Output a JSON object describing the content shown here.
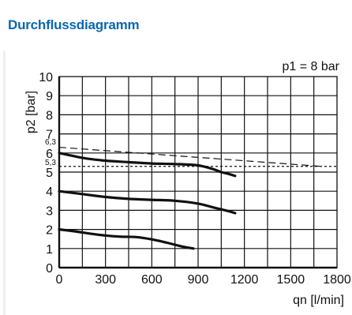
{
  "header": {
    "title": "Durchflussdiagramm"
  },
  "colors": {
    "title": "#0a67b2",
    "grid": "#111111",
    "curve": "#111111"
  },
  "chart_data": {
    "type": "line",
    "title": "",
    "annotation": "p1 = 8 bar",
    "xlabel": "qn [l/min]",
    "ylabel": "p2 [bar]",
    "xlim": [
      0,
      1800
    ],
    "ylim": [
      0,
      10
    ],
    "x_ticks": [
      "0",
      "300",
      "600",
      "900",
      "1200",
      "1500",
      "1800"
    ],
    "x_tick_values": [
      0,
      300,
      600,
      900,
      1200,
      1500,
      1800
    ],
    "y_ticks": [
      "0",
      "1",
      "2",
      "3",
      "4",
      "5",
      "6",
      "7",
      "8",
      "9",
      "10"
    ],
    "y_tick_values": [
      0,
      1,
      2,
      3,
      4,
      5,
      6,
      7,
      8,
      9,
      10
    ],
    "x_grid_step": 150,
    "y_grid_step": 1,
    "grid": true,
    "legend": "none",
    "reference_lines": [
      {
        "label": "6,3",
        "points": [
          {
            "x": 0,
            "y": 6.3
          },
          {
            "x": 1700,
            "y": 5.3
          }
        ],
        "style": "dashed"
      },
      {
        "label": "5,3",
        "points": [
          {
            "x": 0,
            "y": 5.3
          },
          {
            "x": 1800,
            "y": 5.3
          }
        ],
        "style": "dotted"
      }
    ],
    "series": [
      {
        "x": [
          0,
          150,
          300,
          450,
          600,
          750,
          900,
          1000,
          1050,
          1100,
          1140
        ],
        "y": [
          6.0,
          5.75,
          5.6,
          5.52,
          5.45,
          5.42,
          5.35,
          5.15,
          5.0,
          4.9,
          4.8
        ]
      },
      {
        "x": [
          0,
          150,
          300,
          450,
          600,
          750,
          900,
          1000,
          1050,
          1100,
          1140
        ],
        "y": [
          4.0,
          3.85,
          3.7,
          3.6,
          3.55,
          3.5,
          3.35,
          3.15,
          3.05,
          2.95,
          2.85
        ]
      },
      {
        "x": [
          0,
          100,
          200,
          300,
          400,
          500,
          600,
          700,
          800,
          870
        ],
        "y": [
          2.0,
          1.9,
          1.78,
          1.68,
          1.62,
          1.6,
          1.48,
          1.3,
          1.1,
          1.0
        ]
      }
    ]
  }
}
